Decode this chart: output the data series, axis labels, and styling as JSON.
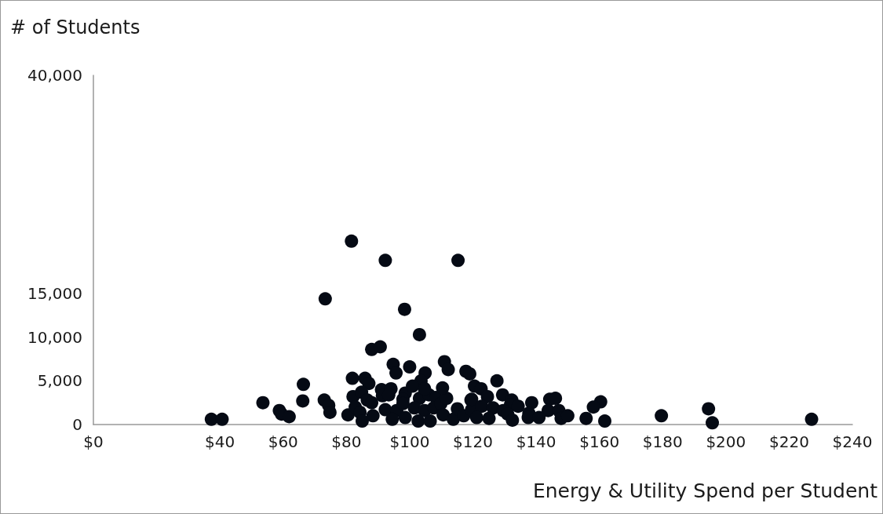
{
  "chart_data": {
    "type": "scatter",
    "ylabel": "# of Students",
    "xlabel": "Energy & Utility Spend per Student",
    "color": "#050a14",
    "marker": "circle",
    "grid": false,
    "x": [
      37.3,
      40.7,
      53.6,
      58.8,
      59.5,
      61.9,
      66.4,
      66.2,
      73.0,
      74.4,
      74.8,
      80.5,
      81.9,
      85.9,
      87.1,
      82.1,
      84.8,
      82.8,
      84.3,
      85.0,
      88.4,
      86.6,
      88.0,
      91.1,
      94.1,
      91.4,
      93.4,
      92.3,
      95.9,
      94.5,
      98.6,
      97.9,
      97.9,
      98.6,
      103.1,
      106.1,
      108.3,
      101.5,
      104.7,
      107.6,
      102.7,
      106.5,
      109.9,
      111.7,
      110.6,
      113.8,
      115.1,
      117.1,
      119.4,
      119.6,
      94.8,
      100.0,
      95.7,
      104.9,
      111.0,
      112.2,
      117.8,
      119.0,
      103.6,
      100.9,
      104.7,
      110.4,
      120.5,
      127.6,
      122.6,
      124.6,
      129.4,
      119.6,
      132.3,
      138.6,
      144.3,
      146.1,
      160.4,
      158.1,
      122.8,
      126.4,
      131.9,
      134.3,
      143.8,
      147.2,
      121.2,
      125.1,
      129.6,
      131.0,
      137.7,
      137.5,
      140.9,
      132.5,
      147.9,
      150.0,
      155.8,
      161.7,
      179.6,
      194.5,
      195.7,
      227.1,
      73.3,
      98.4,
      103.1,
      88.0,
      90.7,
      92.3,
      115.3,
      81.6
    ],
    "values": [
      600,
      600,
      2500,
      1600,
      1200,
      900,
      4600,
      2700,
      2800,
      2200,
      1400,
      1100,
      5300,
      5300,
      4700,
      3200,
      3700,
      2000,
      1400,
      400,
      1000,
      2800,
      2500,
      4000,
      4100,
      3300,
      3400,
      1700,
      1600,
      600,
      3600,
      2900,
      2400,
      800,
      3000,
      3400,
      3100,
      1900,
      1600,
      1900,
      400,
      400,
      2400,
      3000,
      1100,
      600,
      1800,
      1000,
      2800,
      1700,
      6900,
      6600,
      5900,
      5900,
      7200,
      6300,
      6100,
      5800,
      5000,
      4400,
      4100,
      4200,
      4400,
      5000,
      4100,
      3200,
      3400,
      2900,
      2800,
      2500,
      2900,
      3000,
      2600,
      2000,
      2100,
      1900,
      2300,
      2100,
      1600,
      1600,
      800,
      700,
      1600,
      1200,
      1300,
      800,
      800,
      500,
      700,
      1000,
      700,
      400,
      1000,
      1800,
      200,
      600,
      14400,
      13200,
      10300,
      8600,
      8900,
      18800,
      18800,
      21000
    ],
    "xlim": [
      0,
      240
    ],
    "xticks": [
      {
        "value": 0,
        "label": "$0"
      },
      {
        "value": 40,
        "label": "$40"
      },
      {
        "value": 60,
        "label": "$60"
      },
      {
        "value": 80,
        "label": "$80"
      },
      {
        "value": 100,
        "label": "$100"
      },
      {
        "value": 120,
        "label": "$120"
      },
      {
        "value": 140,
        "label": "$140"
      },
      {
        "value": 160,
        "label": "$160"
      },
      {
        "value": 180,
        "label": "$180"
      },
      {
        "value": 200,
        "label": "$200"
      },
      {
        "value": 220,
        "label": "$220"
      },
      {
        "value": 240,
        "label": "$240"
      }
    ],
    "ylim": [
      0,
      40000
    ],
    "yticks": [
      {
        "value": 0,
        "label": "0"
      },
      {
        "value": 5000,
        "label": "5,000"
      },
      {
        "value": 10000,
        "label": "10,000"
      },
      {
        "value": 15000,
        "label": "15,000"
      },
      {
        "value": 40000,
        "label": "40,000"
      }
    ]
  }
}
